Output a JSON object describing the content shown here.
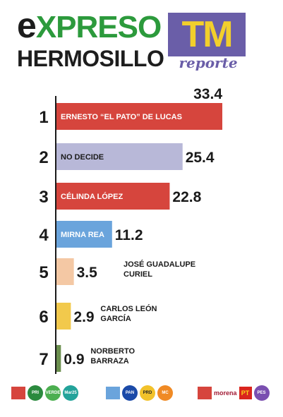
{
  "header": {
    "brand_e": "e",
    "brand_rest": "XPRESO",
    "brand_city": "HERMOSILLO",
    "partner_tm": "TM",
    "partner_reporte": "reporte"
  },
  "colors": {
    "grey": "#b8b8d8",
    "red": "#d6453d",
    "blue": "#6aa4dc",
    "peach": "#f4c8a4",
    "yellow": "#f2c94c",
    "green": "#6b8f4e"
  },
  "chart_data": {
    "type": "bar",
    "orientation": "horizontal",
    "xlim": [
      0,
      36
    ],
    "grid": false,
    "bars": [
      {
        "rank": "1",
        "name": "ERNESTO “EL PATO” DE LUCAS",
        "value": 33.4,
        "color": "#d6453d",
        "label_position": "inside"
      },
      {
        "rank": "2",
        "name": "NO DECIDE",
        "value": 25.4,
        "color": "#b8b8d8",
        "label_position": "inside"
      },
      {
        "rank": "3",
        "name": "CÉLINDA LÓPEZ",
        "value": 22.8,
        "color": "#d6453d",
        "label_position": "inside"
      },
      {
        "rank": "4",
        "name": "MIRNA REA",
        "value": 11.2,
        "color": "#6aa4dc",
        "label_position": "inside"
      },
      {
        "rank": "5",
        "name": "JOSÉ GUADALUPE CURIEL",
        "value": 3.5,
        "color": "#f4c8a4",
        "label_position": "outside"
      },
      {
        "rank": "6",
        "name": "CARLOS LEÓN GARCÍA",
        "value": 2.9,
        "color": "#f2c94c",
        "label_position": "outside"
      },
      {
        "rank": "7",
        "name": "NORBERTO BARRAZA",
        "value": 0.9,
        "color": "#6b8f4e",
        "label_position": "outside"
      }
    ]
  },
  "legend": {
    "group1": {
      "color": "#d6453d",
      "parties": [
        "PRI",
        "VERDE",
        "Mar25"
      ]
    },
    "group2": {
      "color": "#6aa4dc",
      "parties": [
        "PAN",
        "PRD",
        "MC"
      ]
    },
    "group3": {
      "color": "#d6453d",
      "parties": [
        "morena",
        "PT",
        "PES"
      ]
    }
  }
}
